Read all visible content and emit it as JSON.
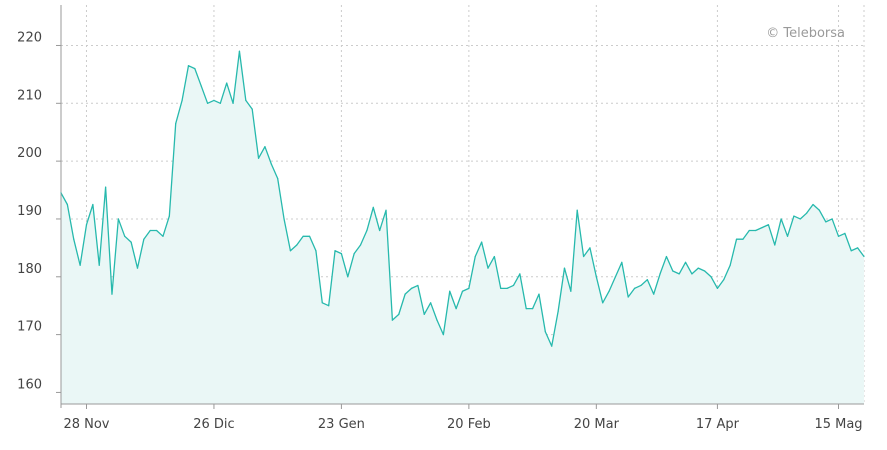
{
  "chart_data": {
    "type": "area",
    "watermark": "© Teleborsa",
    "title": "",
    "xlabel": "",
    "ylabel": "",
    "ylim": [
      158,
      227
    ],
    "yticks": [
      160,
      170,
      180,
      190,
      200,
      210,
      220
    ],
    "xticks": [
      "28 Nov",
      "26 Dic",
      "23 Gen",
      "20 Feb",
      "20 Mar",
      "17 Apr",
      "15 Mag"
    ],
    "xtick_index": [
      4,
      24,
      44,
      64,
      84,
      103,
      122
    ],
    "grid": true,
    "colors": {
      "line": "#27b9ad",
      "fill": "#eaf7f6",
      "grid": "#cccccc",
      "axis": "#999999"
    },
    "series": [
      {
        "values": [
          194.5,
          192.5,
          186.5,
          182,
          189,
          192.5,
          182,
          195.5,
          177,
          190,
          187,
          186,
          181.5,
          186.5,
          188,
          188,
          187,
          190.5,
          206.5,
          210.5,
          216.5,
          216,
          213,
          210,
          210.5,
          210,
          213.5,
          210,
          219,
          210.5,
          209,
          200.5,
          202.5,
          199.5,
          197,
          190,
          184.5,
          185.5,
          187,
          187,
          184.5,
          175.5,
          175,
          184.5,
          184,
          180,
          184,
          185.5,
          188,
          192,
          188,
          191.5,
          172.5,
          173.5,
          177,
          178,
          178.5,
          173.5,
          175.5,
          172.5,
          170,
          177.5,
          174.5,
          177.5,
          178,
          183.5,
          186,
          181.5,
          183.5,
          178,
          178,
          178.5,
          180.5,
          174.5,
          174.5,
          177,
          170.5,
          168,
          174,
          181.5,
          177.5,
          191.5,
          183.5,
          185,
          180,
          175.5,
          177.5,
          180,
          182.5,
          176.5,
          178,
          178.5,
          179.5,
          177,
          180.5,
          183.5,
          181,
          180.5,
          182.5,
          180.5,
          181.5,
          181,
          180,
          178,
          179.5,
          182,
          186.5,
          186.5,
          188,
          188,
          188.5,
          189,
          185.5,
          190,
          187,
          190.5,
          190,
          191,
          192.5,
          191.5,
          189.5,
          190,
          187,
          187.5,
          184.5,
          185,
          183.5
        ]
      }
    ]
  }
}
